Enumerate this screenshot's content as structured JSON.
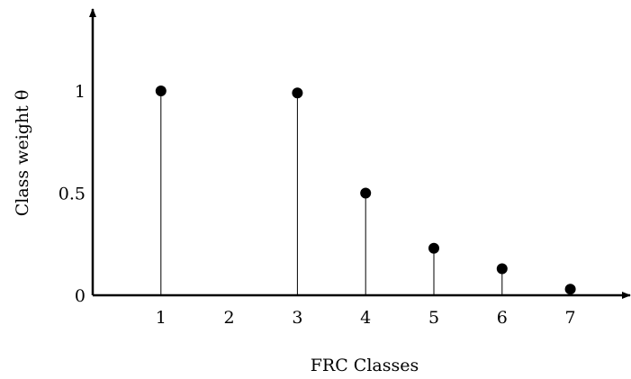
{
  "chart_data": {
    "type": "stem",
    "xlabel": "FRC Classes",
    "ylabel": "Class weight θ",
    "x_ticks": [
      "1",
      "2",
      "3",
      "4",
      "5",
      "6",
      "7"
    ],
    "y_ticks": [
      "0",
      "0.5",
      "1"
    ],
    "points": [
      {
        "x": 1,
        "y": 1.0
      },
      {
        "x": 3,
        "y": 0.99
      },
      {
        "x": 4,
        "y": 0.5
      },
      {
        "x": 5,
        "y": 0.23
      },
      {
        "x": 6,
        "y": 0.13
      },
      {
        "x": 7,
        "y": 0.03
      }
    ],
    "xlim": [
      0,
      7.75
    ],
    "ylim": [
      0,
      1.35
    ],
    "grid": false,
    "legend": "none",
    "colors": {
      "marks": "#000000",
      "axes": "#000000",
      "background": "#ffffff"
    }
  }
}
